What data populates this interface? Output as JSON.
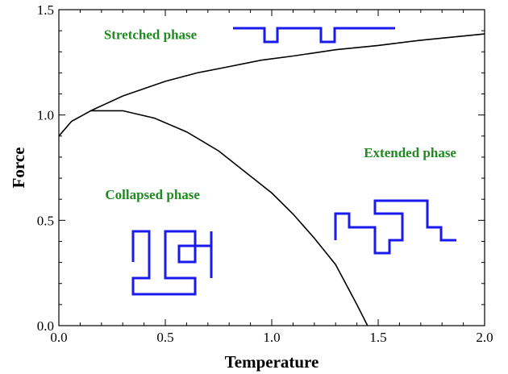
{
  "chart_data": {
    "type": "line",
    "xlabel": "Temperature",
    "ylabel": "Force",
    "xlim": [
      0,
      2
    ],
    "ylim": [
      0,
      1.5
    ],
    "x_ticks": [
      "0.0",
      "0.5",
      "1.0",
      "1.5",
      "2.0"
    ],
    "y_ticks": [
      "0.0",
      "0.5",
      "1.0",
      "1.5"
    ],
    "x_tick_values": [
      0,
      0.5,
      1.0,
      1.5,
      2.0
    ],
    "y_tick_values": [
      0,
      0.5,
      1.0,
      1.5
    ],
    "grid": false,
    "series": [
      {
        "x": [
          0.0,
          0.06,
          0.15,
          0.3,
          0.45,
          0.6,
          0.75,
          0.9,
          1.0,
          1.1,
          1.2,
          1.3,
          1.4,
          1.45
        ],
        "y": [
          0.9,
          0.97,
          1.02,
          1.02,
          0.985,
          0.92,
          0.83,
          0.71,
          0.63,
          0.53,
          0.415,
          0.29,
          0.1,
          0.0
        ]
      },
      {
        "x": [
          0.15,
          0.3,
          0.5,
          0.65,
          0.8,
          0.95,
          1.1,
          1.3,
          1.5,
          1.7,
          1.9,
          2.0
        ],
        "y": [
          1.02,
          1.09,
          1.16,
          1.2,
          1.23,
          1.26,
          1.28,
          1.31,
          1.33,
          1.355,
          1.375,
          1.385
        ]
      }
    ],
    "annotations": [
      {
        "text": "Stretched phase",
        "x": 0.43,
        "y": 1.36
      },
      {
        "text": "Extended phase",
        "x": 1.65,
        "y": 0.8
      },
      {
        "text": "Collapsed phase",
        "x": 0.44,
        "y": 0.6
      }
    ],
    "colors": {
      "curve": "#000000",
      "label": "#1f8a1f",
      "polymer": "#1a1aee"
    }
  }
}
